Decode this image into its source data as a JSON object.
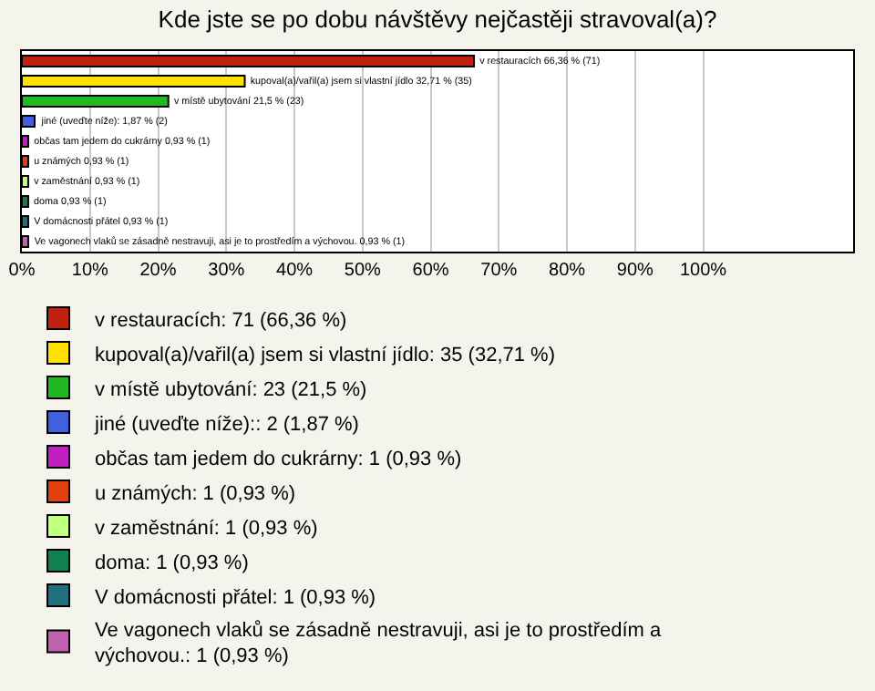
{
  "chart_data": {
    "type": "bar",
    "orientation": "horizontal",
    "stacked": true,
    "title": "Kde jste se po dobu návštěvy nejčastěji stravoval(a)?",
    "categories": [
      null,
      null,
      null,
      null,
      null,
      null,
      null,
      null,
      null,
      null
    ],
    "series": [
      {
        "name": "v restauracích: 71 (66,36 %)",
        "color": "#c0200f",
        "values": [
          66.36,
          null,
          null,
          null,
          null,
          null,
          null,
          null,
          null,
          null
        ]
      },
      {
        "name": "kupoval(a)/vařil(a) jsem si vlastní jídlo: 35 (32,71 %)",
        "color": "#ffe000",
        "values": [
          null,
          32.71,
          null,
          null,
          null,
          null,
          null,
          null,
          null,
          null
        ]
      },
      {
        "name": "v místě ubytování: 23 (21,5 %)",
        "color": "#22b822",
        "values": [
          null,
          null,
          21.5,
          null,
          null,
          null,
          null,
          null,
          null,
          null
        ]
      },
      {
        "name": "jiné (uveďte níže):: 2 (1,87 %)",
        "color": "#4060e0",
        "values": [
          null,
          null,
          null,
          1.87,
          null,
          null,
          null,
          null,
          null,
          null
        ]
      },
      {
        "name": "občas tam jedem do cukrárny: 1 (0,93 %)",
        "color": "#c020c0",
        "values": [
          null,
          null,
          null,
          null,
          0.93,
          null,
          null,
          null,
          null,
          null
        ]
      },
      {
        "name": "u známých: 1 (0,93 %)",
        "color": "#e04010",
        "values": [
          null,
          null,
          null,
          null,
          null,
          0.93,
          null,
          null,
          null,
          null
        ]
      },
      {
        "name": "v zaměstnání: 1 (0,93 %)",
        "color": "#c0ff80",
        "values": [
          null,
          null,
          null,
          null,
          null,
          null,
          0.93,
          null,
          null,
          null
        ]
      },
      {
        "name": "doma: 1 (0,93 %)",
        "color": "#108050",
        "values": [
          null,
          null,
          null,
          null,
          null,
          null,
          null,
          0.93,
          null,
          null
        ]
      },
      {
        "name": "V domácnosti přátel: 1 (0,93 %)",
        "color": "#207080",
        "values": [
          null,
          null,
          null,
          null,
          null,
          null,
          null,
          null,
          0.93,
          null
        ]
      },
      {
        "name": "Ve vagonech vlaků se zásadně nestravuji, asi je to prostředím a výchovou.: 1 (0,93 %)",
        "color": "#c060b0",
        "values": [
          null,
          null,
          null,
          null,
          null,
          null,
          null,
          null,
          null,
          0.93
        ]
      }
    ],
    "value_labels": [
      "v restauracích 66,36 % (71)",
      "kupoval(a)/vařil(a) jsem si vlastní jídlo 32,71 % (35)",
      "v místě ubytování 21,5 % (23)",
      "jiné (uveďte níže): 1,87 % (2)",
      "občas tam jedem do cukrárny 0,93 % (1)",
      "u známých 0,93 % (1)",
      "v zaměstnání 0,93 % (1)",
      "doma 0,93 % (1)",
      "V domácnosti přátel 0,93 % (1)",
      "Ve vagonech vlaků se zásadně nestravuji, asi je to prostředím a výchovou. 0,93 % (1)"
    ],
    "xlim": [
      0,
      122
    ],
    "xticks": [
      {
        "value": 0,
        "label": "0%"
      },
      {
        "value": 10,
        "label": "10%"
      },
      {
        "value": 20,
        "label": "20%"
      },
      {
        "value": 30,
        "label": "30%"
      },
      {
        "value": 40,
        "label": "40%"
      },
      {
        "value": 50,
        "label": "50%"
      },
      {
        "value": 60,
        "label": "60%"
      },
      {
        "value": 70,
        "label": "70%"
      },
      {
        "value": 80,
        "label": "80%"
      },
      {
        "value": 90,
        "label": "90%"
      },
      {
        "value": 100,
        "label": "100%"
      }
    ],
    "grid": "x",
    "legend": "bottom",
    "tick_labels": "x"
  }
}
